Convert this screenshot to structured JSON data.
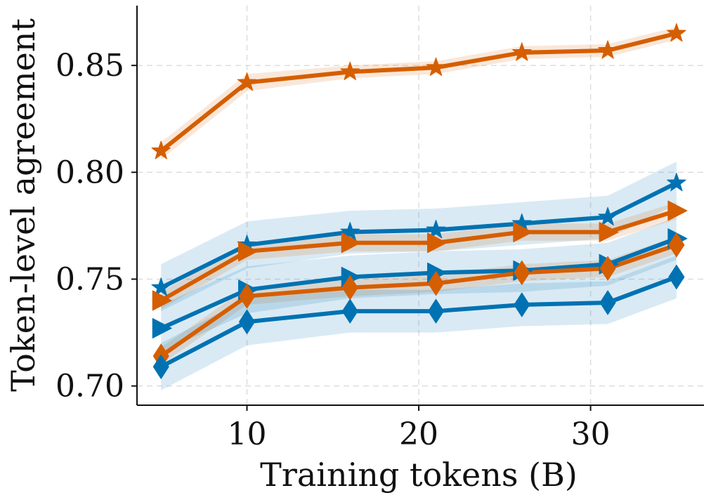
{
  "chart_data": {
    "type": "line",
    "xlabel": "Training tokens (B)",
    "ylabel": "Token-level agreement",
    "xlim": [
      3.6,
      36.6
    ],
    "ylim": [
      0.691,
      0.878
    ],
    "xticks": [
      10,
      20,
      30
    ],
    "yticks": [
      0.7,
      0.75,
      0.8,
      0.85
    ],
    "xtick_labels": [
      "10",
      "20",
      "30"
    ],
    "ytick_labels": [
      "0.70",
      "0.75",
      "0.80",
      "0.85"
    ],
    "grid": true,
    "x": [
      5,
      10,
      16,
      21,
      26,
      31,
      35
    ],
    "series": [
      {
        "color": "#d55e00",
        "marker": "star",
        "values": [
          0.81,
          0.842,
          0.847,
          0.849,
          0.856,
          0.857,
          0.865
        ],
        "band": [
          0.004,
          0.004,
          0.003,
          0.003,
          0.003,
          0.003,
          0.003
        ]
      },
      {
        "color": "#0072b2",
        "marker": "star",
        "values": [
          0.746,
          0.766,
          0.772,
          0.773,
          0.776,
          0.779,
          0.795
        ],
        "band": [
          0.011,
          0.011,
          0.01,
          0.01,
          0.01,
          0.01,
          0.01
        ]
      },
      {
        "color": "#d55e00",
        "marker": "triangle-right",
        "values": [
          0.74,
          0.763,
          0.767,
          0.767,
          0.772,
          0.772,
          0.782
        ],
        "band": [
          0.004,
          0.004,
          0.004,
          0.004,
          0.004,
          0.004,
          0.004
        ]
      },
      {
        "color": "#0072b2",
        "marker": "triangle-right",
        "values": [
          0.727,
          0.745,
          0.751,
          0.753,
          0.754,
          0.757,
          0.769
        ],
        "band": [
          0.011,
          0.011,
          0.01,
          0.01,
          0.01,
          0.01,
          0.01
        ]
      },
      {
        "color": "#d55e00",
        "marker": "diamond",
        "values": [
          0.714,
          0.742,
          0.746,
          0.748,
          0.753,
          0.755,
          0.766
        ],
        "band": [
          0.004,
          0.004,
          0.004,
          0.004,
          0.004,
          0.004,
          0.004
        ]
      },
      {
        "color": "#0072b2",
        "marker": "diamond",
        "values": [
          0.709,
          0.73,
          0.735,
          0.735,
          0.738,
          0.739,
          0.751
        ],
        "band": [
          0.011,
          0.011,
          0.01,
          0.01,
          0.01,
          0.01,
          0.01
        ]
      }
    ]
  }
}
